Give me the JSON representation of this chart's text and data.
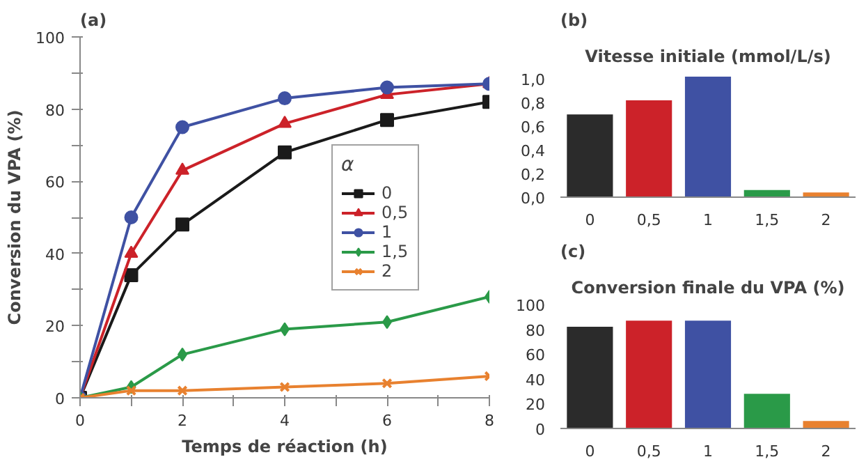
{
  "chart_data": [
    {
      "type": "line",
      "annotations": [
        "(a)"
      ],
      "xlabel": "Temps de réaction (h)",
      "ylabel": "Conversion du VPA (%)",
      "x": [
        0,
        1,
        2,
        4,
        6,
        8
      ],
      "xlim": [
        0,
        8
      ],
      "ylim": [
        0,
        100
      ],
      "xticks": [
        0,
        {
          "value": 1,
          "label": null
        },
        2,
        {
          "value": 3,
          "label": null
        },
        4,
        {
          "value": 5,
          "label": null
        },
        6,
        {
          "value": 7,
          "label": null
        },
        8
      ],
      "yticks": [
        0,
        {
          "value": 10,
          "label": null
        },
        20,
        {
          "value": 30,
          "label": null
        },
        40,
        {
          "value": 50,
          "label": null
        },
        60,
        {
          "value": 70,
          "label": null
        },
        80,
        {
          "value": 90,
          "label": null
        },
        100
      ],
      "legend": "right",
      "legend_title": "α",
      "grid": false,
      "series": [
        {
          "name": "0",
          "color": "#1a1a1a",
          "marker": "square",
          "values": [
            0,
            34,
            48,
            68,
            77,
            82
          ]
        },
        {
          "name": "0,5",
          "color": "#cc2229",
          "marker": "triangle",
          "values": [
            0,
            40,
            63,
            76,
            84,
            87
          ]
        },
        {
          "name": "1",
          "color": "#3f51a3",
          "marker": "circle",
          "values": [
            0,
            50,
            75,
            83,
            86,
            87
          ]
        },
        {
          "name": "1,5",
          "color": "#2a9a48",
          "marker": "diamond",
          "values": [
            0,
            3,
            12,
            19,
            21,
            28
          ]
        },
        {
          "name": "2",
          "color": "#e8812f",
          "marker": "cross",
          "values": [
            0,
            2,
            2,
            3,
            4,
            6
          ]
        }
      ]
    },
    {
      "type": "bar",
      "annotations": [
        "(b)"
      ],
      "title": "Vitesse initiale (mmol/L/s)",
      "categories": [
        "0",
        "0,5",
        "1",
        "1,5",
        "2"
      ],
      "values": [
        0.7,
        0.82,
        1.02,
        0.06,
        0.04
      ],
      "colors": [
        "#2b2b2b",
        "#cc2229",
        "#3f51a3",
        "#2a9a48",
        "#e8812f"
      ],
      "ylim": [
        0,
        1.05
      ],
      "yticks": [
        {
          "value": 0,
          "label": "0,0"
        },
        {
          "value": 0.2,
          "label": "0,2"
        },
        {
          "value": 0.4,
          "label": "0,4"
        },
        {
          "value": 0.6,
          "label": "0,6"
        },
        {
          "value": 0.8,
          "label": "0,8"
        },
        {
          "value": 1.0,
          "label": "1,0"
        }
      ],
      "grid": false
    },
    {
      "type": "bar",
      "annotations": [
        "(c)"
      ],
      "title": "Conversion finale du VPA (%)",
      "categories": [
        "0",
        "0,5",
        "1",
        "1,5",
        "2"
      ],
      "values": [
        82,
        87,
        87,
        28,
        6
      ],
      "colors": [
        "#2b2b2b",
        "#cc2229",
        "#3f51a3",
        "#2a9a48",
        "#e8812f"
      ],
      "ylim": [
        0,
        100
      ],
      "yticks": [
        0,
        20,
        40,
        60,
        80,
        100
      ],
      "grid": false
    }
  ]
}
